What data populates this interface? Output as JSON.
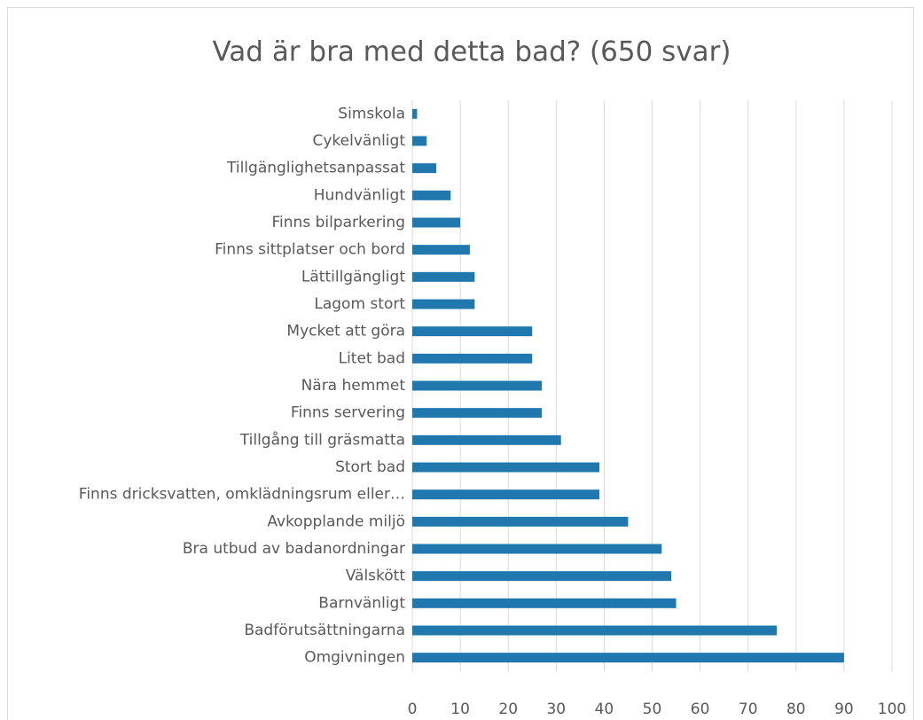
{
  "chart_data": {
    "type": "bar",
    "orientation": "horizontal",
    "title": "Vad är bra med detta bad? (650 svar)",
    "categories": [
      "Simskola",
      "Cykelvänligt",
      "Tillgänglighetsanpassat",
      "Hundvänligt",
      "Finns bilparkering",
      "Finns sittplatser och bord",
      "Lättillgängligt",
      "Lagom stort",
      "Mycket att göra",
      "Litet bad",
      "Nära hemmet",
      "Finns servering",
      "Tillgång till gräsmatta",
      "Stort bad",
      "Finns dricksvatten, omklädningsrum eller…",
      "Avkopplande miljö",
      "Bra utbud av badanordningar",
      "Välskött",
      "Barnvänligt",
      "Badförutsättningarna",
      "Omgivningen"
    ],
    "values": [
      1,
      3,
      5,
      8,
      10,
      12,
      13,
      13,
      25,
      25,
      27,
      27,
      31,
      39,
      39,
      45,
      52,
      54,
      55,
      76,
      90
    ],
    "color": "#2178ae",
    "xlim": [
      0,
      100
    ],
    "xticks": [
      0,
      10,
      20,
      30,
      40,
      50,
      60,
      70,
      80,
      90,
      100
    ],
    "grid": true
  }
}
